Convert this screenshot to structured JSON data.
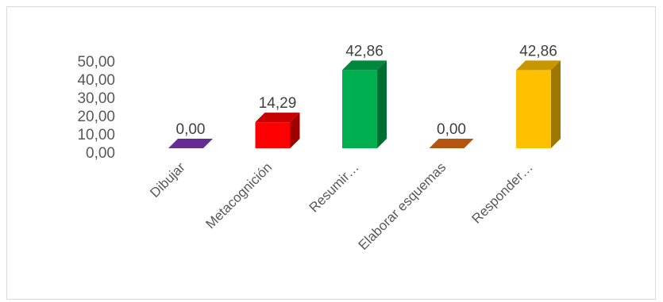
{
  "chart_data": {
    "type": "bar",
    "categories": [
      "Dibujar",
      "Metacognición",
      "Resumir…",
      "Elaborar esquemas",
      "Responder…"
    ],
    "values": [
      0.0,
      14.29,
      42.86,
      0.0,
      42.86
    ],
    "data_labels": [
      "0,00",
      "14,29",
      "42,86",
      "0,00",
      "42,86"
    ],
    "y_ticks": [
      "0,00",
      "10,00",
      "20,00",
      "30,00",
      "40,00",
      "50,00"
    ],
    "ylim": [
      0,
      50
    ],
    "grid": false,
    "legend": "none",
    "colors": [
      "#7030a0",
      "#ff0000",
      "#00b050",
      "#c55a11",
      "#ffc000"
    ],
    "title": "",
    "xlabel": "",
    "ylabel": ""
  }
}
